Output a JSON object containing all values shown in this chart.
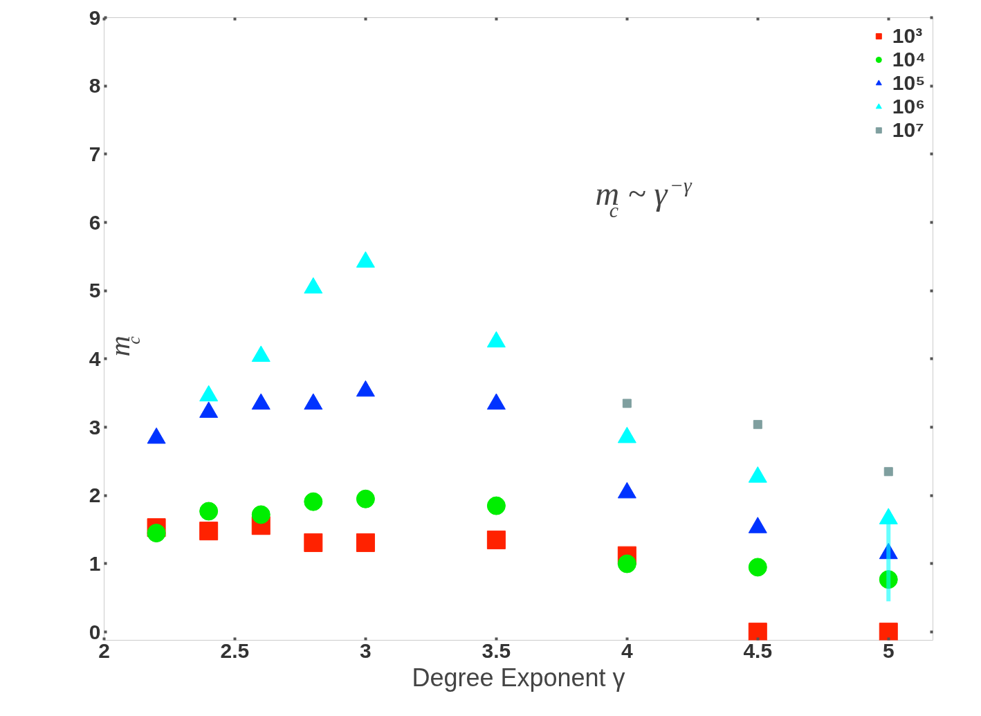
{
  "chart_data": {
    "type": "scatter",
    "xlabel": "Degree Exponent γ",
    "ylabel": "m$_{c}$",
    "annotations": [
      "m$_{c}$ ~ γ$^{−γ}$"
    ],
    "x": [
      2.2,
      2.4,
      2.6,
      2.8,
      3,
      3.5,
      4,
      4.5,
      5
    ],
    "xlim": [
      2,
      5.17
    ],
    "xticks": [
      2,
      2.5,
      3,
      3.5,
      4,
      4.5,
      5
    ],
    "ylim": [
      -0.12,
      9
    ],
    "yticks": [
      0,
      1,
      2,
      3,
      4,
      5,
      6,
      7,
      8,
      9
    ],
    "grid": false,
    "legend": "top right",
    "series": [
      {
        "name": "10³",
        "color": "#ff2200",
        "marker": "square",
        "values": [
          1.53,
          1.48,
          1.56,
          1.31,
          1.31,
          1.35,
          1.12,
          0,
          0
        ]
      },
      {
        "name": "10⁴",
        "color": "#00ee00",
        "marker": "circle",
        "values": [
          1.45,
          1.77,
          1.72,
          1.91,
          1.95,
          1.85,
          1.0,
          0.95,
          0.77
        ]
      },
      {
        "name": "10⁵",
        "color": "#0033ff",
        "marker": "triangle",
        "values": [
          2.84,
          3.22,
          3.34,
          3.34,
          3.53,
          3.34,
          2.04,
          1.53,
          1.15
        ]
      },
      {
        "name": "10⁶",
        "color": "#00ffff",
        "marker": "triangle",
        "values": [
          null,
          3.46,
          4.04,
          5.04,
          5.42,
          4.25,
          2.85,
          2.27,
          1.66
        ],
        "errors": [
          null,
          null,
          null,
          null,
          null,
          null,
          null,
          null,
          [
            0.45,
            1.68
          ]
        ]
      },
      {
        "name": "10⁷",
        "color": "#7f9f9f",
        "marker": "square",
        "x": [
          4,
          4.5,
          5
        ],
        "values": [
          3.35,
          3.04,
          2.35
        ]
      }
    ]
  }
}
